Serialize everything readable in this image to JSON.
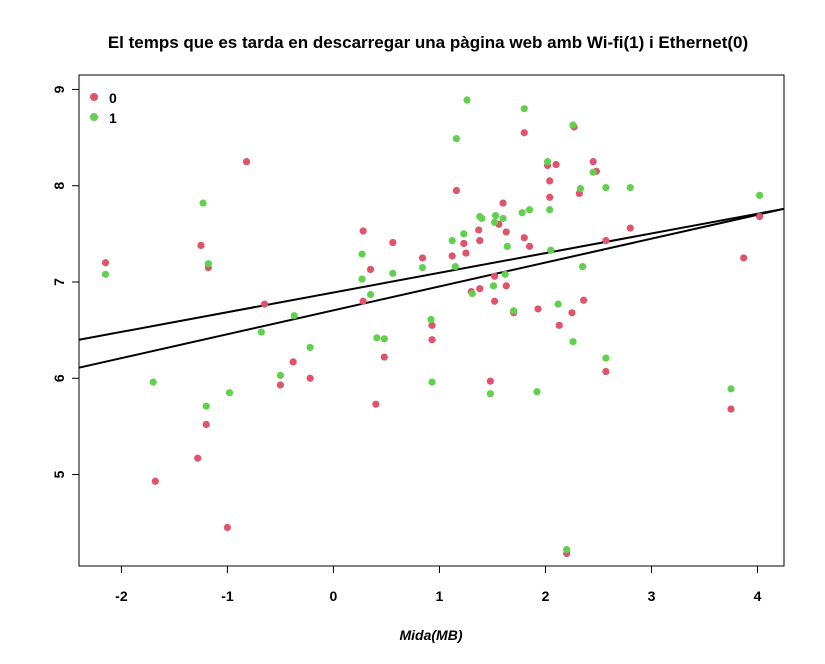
{
  "chart_data": {
    "type": "scatter",
    "title": "El temps que es tarda en descarregar una pàgina web amb Wi-fi(1) i Ethernet(0)",
    "xlabel": "Mida(MB)",
    "ylabel": "",
    "xlim": [
      -2.4,
      4.25
    ],
    "ylim": [
      4.05,
      9.15
    ],
    "xticks": [
      "-2",
      "-1",
      "0",
      "1",
      "2",
      "3",
      "4"
    ],
    "yticks": [
      "5",
      "6",
      "7",
      "8",
      "9"
    ],
    "legend_position": "top-left",
    "series": [
      {
        "name": "0",
        "color": "#DF536B",
        "points": [
          [
            -2.15,
            7.2
          ],
          [
            -1.68,
            4.93
          ],
          [
            -1.28,
            5.17
          ],
          [
            -1.25,
            7.38
          ],
          [
            -1.2,
            5.52
          ],
          [
            -1.18,
            7.15
          ],
          [
            -1.0,
            4.45
          ],
          [
            -0.82,
            8.25
          ],
          [
            -0.65,
            6.77
          ],
          [
            -0.5,
            5.93
          ],
          [
            -0.38,
            6.17
          ],
          [
            -0.22,
            6.0
          ],
          [
            0.28,
            7.53
          ],
          [
            0.28,
            6.8
          ],
          [
            0.35,
            7.13
          ],
          [
            0.4,
            5.73
          ],
          [
            0.48,
            6.22
          ],
          [
            0.56,
            7.41
          ],
          [
            0.84,
            7.25
          ],
          [
            0.93,
            6.4
          ],
          [
            0.93,
            6.55
          ],
          [
            1.12,
            7.27
          ],
          [
            1.16,
            7.95
          ],
          [
            1.23,
            7.4
          ],
          [
            1.25,
            7.3
          ],
          [
            1.3,
            6.9
          ],
          [
            1.37,
            7.54
          ],
          [
            1.38,
            7.43
          ],
          [
            1.38,
            6.93
          ],
          [
            1.48,
            5.97
          ],
          [
            1.52,
            6.8
          ],
          [
            1.52,
            7.06
          ],
          [
            1.56,
            7.6
          ],
          [
            1.6,
            7.82
          ],
          [
            1.63,
            7.52
          ],
          [
            1.63,
            6.96
          ],
          [
            1.7,
            6.68
          ],
          [
            1.8,
            7.46
          ],
          [
            1.8,
            8.55
          ],
          [
            1.85,
            7.37
          ],
          [
            1.93,
            6.72
          ],
          [
            2.02,
            8.21
          ],
          [
            2.04,
            7.88
          ],
          [
            2.04,
            8.05
          ],
          [
            2.1,
            8.22
          ],
          [
            2.13,
            6.55
          ],
          [
            2.2,
            4.18
          ],
          [
            2.25,
            6.68
          ],
          [
            2.27,
            8.61
          ],
          [
            2.32,
            7.92
          ],
          [
            2.36,
            6.81
          ],
          [
            2.45,
            8.25
          ],
          [
            2.48,
            8.15
          ],
          [
            2.57,
            7.43
          ],
          [
            2.57,
            6.07
          ],
          [
            2.8,
            7.56
          ],
          [
            3.75,
            5.68
          ],
          [
            3.87,
            7.25
          ],
          [
            4.02,
            7.68
          ]
        ]
      },
      {
        "name": "1",
        "color": "#61D04F",
        "points": [
          [
            -2.15,
            7.08
          ],
          [
            -1.7,
            5.96
          ],
          [
            -1.23,
            7.82
          ],
          [
            -1.2,
            5.71
          ],
          [
            -1.18,
            7.19
          ],
          [
            -0.98,
            5.85
          ],
          [
            -0.68,
            6.48
          ],
          [
            -0.5,
            6.03
          ],
          [
            -0.37,
            6.65
          ],
          [
            -0.22,
            6.32
          ],
          [
            0.27,
            7.03
          ],
          [
            0.27,
            7.29
          ],
          [
            0.35,
            6.87
          ],
          [
            0.41,
            6.42
          ],
          [
            0.48,
            6.41
          ],
          [
            0.56,
            7.09
          ],
          [
            0.84,
            7.15
          ],
          [
            0.92,
            6.61
          ],
          [
            0.93,
            5.96
          ],
          [
            1.12,
            7.43
          ],
          [
            1.15,
            7.16
          ],
          [
            1.16,
            8.49
          ],
          [
            1.23,
            7.5
          ],
          [
            1.26,
            8.89
          ],
          [
            1.31,
            6.88
          ],
          [
            1.38,
            7.68
          ],
          [
            1.4,
            7.66
          ],
          [
            1.48,
            5.84
          ],
          [
            1.51,
            6.96
          ],
          [
            1.52,
            7.62
          ],
          [
            1.53,
            7.69
          ],
          [
            1.6,
            7.66
          ],
          [
            1.62,
            7.08
          ],
          [
            1.64,
            7.37
          ],
          [
            1.7,
            6.7
          ],
          [
            1.78,
            7.72
          ],
          [
            1.8,
            8.8
          ],
          [
            1.85,
            7.75
          ],
          [
            1.92,
            5.86
          ],
          [
            2.02,
            8.25
          ],
          [
            2.04,
            7.75
          ],
          [
            2.05,
            7.33
          ],
          [
            2.12,
            6.77
          ],
          [
            2.2,
            4.22
          ],
          [
            2.26,
            8.63
          ],
          [
            2.26,
            6.38
          ],
          [
            2.33,
            7.97
          ],
          [
            2.35,
            7.16
          ],
          [
            2.45,
            8.14
          ],
          [
            2.57,
            6.21
          ],
          [
            2.57,
            7.98
          ],
          [
            2.8,
            7.98
          ],
          [
            3.75,
            5.89
          ],
          [
            4.02,
            7.9
          ]
        ]
      }
    ],
    "regression_lines": [
      {
        "x": [
          -2.4,
          4.25
        ],
        "y": [
          6.11,
          7.76
        ]
      },
      {
        "x": [
          -2.4,
          4.25
        ],
        "y": [
          6.4,
          7.76
        ]
      }
    ]
  }
}
